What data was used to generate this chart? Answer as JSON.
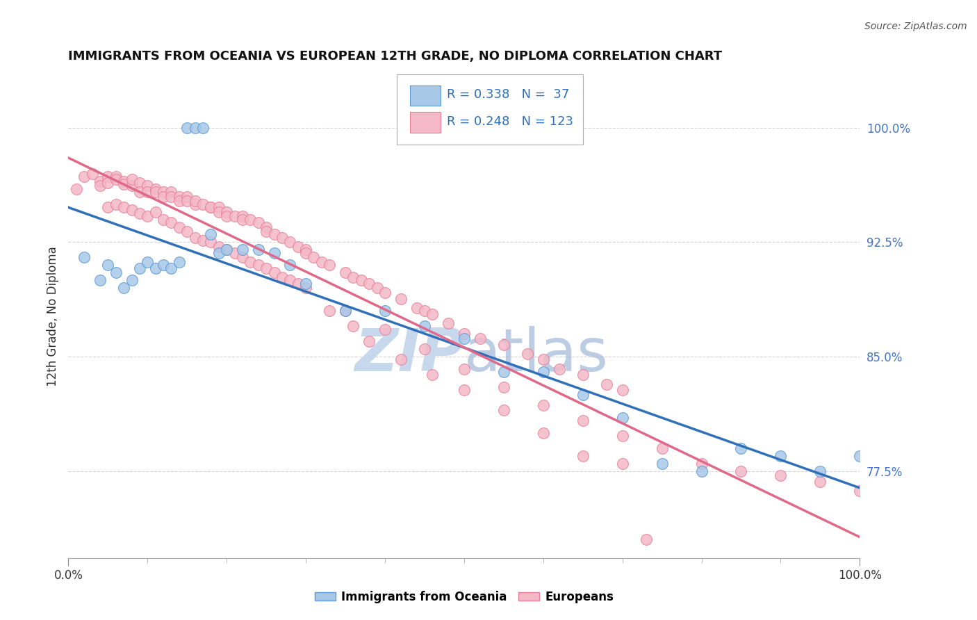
{
  "title": "IMMIGRANTS FROM OCEANIA VS EUROPEAN 12TH GRADE, NO DIPLOMA CORRELATION CHART",
  "source": "Source: ZipAtlas.com",
  "ylabel": "12th Grade, No Diploma",
  "xlim": [
    0.0,
    1.0
  ],
  "ylim": [
    0.718,
    1.035
  ],
  "yticks": [
    0.775,
    0.85,
    0.925,
    1.0
  ],
  "ytick_labels": [
    "77.5%",
    "85.0%",
    "92.5%",
    "100.0%"
  ],
  "xticks": [
    0.0,
    1.0
  ],
  "xtick_labels": [
    "0.0%",
    "100.0%"
  ],
  "legend_r_blue": "R = 0.338",
  "legend_n_blue": "N =  37",
  "legend_r_pink": "R = 0.248",
  "legend_n_pink": "N = 123",
  "blue_face_color": "#a8c8e8",
  "blue_edge_color": "#5b9bd5",
  "pink_face_color": "#f4b8c8",
  "pink_edge_color": "#e88098",
  "blue_line_color": "#3070b8",
  "pink_line_color": "#e06888",
  "watermark_color": "#c8d8ec",
  "background_color": "#ffffff",
  "tick_color": "#4472c4",
  "grid_color": "#d0d0d0",
  "blue_x": [
    0.02,
    0.04,
    0.05,
    0.06,
    0.07,
    0.08,
    0.09,
    0.1,
    0.11,
    0.12,
    0.13,
    0.14,
    0.15,
    0.16,
    0.17,
    0.18,
    0.19,
    0.2,
    0.22,
    0.24,
    0.26,
    0.28,
    0.3,
    0.35,
    0.4,
    0.45,
    0.5,
    0.55,
    0.6,
    0.65,
    0.7,
    0.75,
    0.8,
    0.85,
    0.9,
    0.95,
    1.0
  ],
  "blue_y": [
    0.915,
    0.9,
    0.91,
    0.905,
    0.895,
    0.9,
    0.908,
    0.912,
    0.908,
    0.91,
    0.908,
    0.912,
    1.0,
    1.0,
    1.0,
    0.93,
    0.918,
    0.92,
    0.92,
    0.92,
    0.918,
    0.91,
    0.898,
    0.88,
    0.88,
    0.87,
    0.862,
    0.84,
    0.84,
    0.825,
    0.81,
    0.78,
    0.775,
    0.79,
    0.785,
    0.775,
    0.785
  ],
  "pink_x": [
    0.01,
    0.02,
    0.03,
    0.04,
    0.04,
    0.05,
    0.05,
    0.06,
    0.06,
    0.07,
    0.07,
    0.08,
    0.08,
    0.09,
    0.09,
    0.1,
    0.1,
    0.11,
    0.11,
    0.12,
    0.12,
    0.13,
    0.13,
    0.14,
    0.14,
    0.15,
    0.15,
    0.16,
    0.16,
    0.17,
    0.18,
    0.18,
    0.19,
    0.19,
    0.2,
    0.2,
    0.21,
    0.22,
    0.22,
    0.23,
    0.24,
    0.25,
    0.25,
    0.26,
    0.27,
    0.28,
    0.29,
    0.3,
    0.3,
    0.31,
    0.32,
    0.33,
    0.35,
    0.36,
    0.37,
    0.38,
    0.39,
    0.4,
    0.42,
    0.44,
    0.45,
    0.46,
    0.48,
    0.5,
    0.52,
    0.55,
    0.58,
    0.6,
    0.62,
    0.65,
    0.68,
    0.7,
    0.05,
    0.06,
    0.07,
    0.08,
    0.09,
    0.1,
    0.11,
    0.12,
    0.13,
    0.14,
    0.15,
    0.16,
    0.17,
    0.18,
    0.19,
    0.2,
    0.21,
    0.22,
    0.23,
    0.24,
    0.25,
    0.26,
    0.27,
    0.28,
    0.29,
    0.3,
    0.35,
    0.4,
    0.45,
    0.5,
    0.55,
    0.6,
    0.65,
    0.7,
    0.75,
    0.8,
    0.85,
    0.9,
    0.95,
    1.0,
    0.33,
    0.36,
    0.38,
    0.42,
    0.46,
    0.5,
    0.55,
    0.6,
    0.65,
    0.7,
    0.73
  ],
  "pink_y": [
    0.96,
    0.968,
    0.97,
    0.965,
    0.962,
    0.968,
    0.964,
    0.968,
    0.966,
    0.965,
    0.963,
    0.962,
    0.966,
    0.964,
    0.958,
    0.962,
    0.958,
    0.96,
    0.958,
    0.958,
    0.955,
    0.958,
    0.955,
    0.955,
    0.952,
    0.955,
    0.952,
    0.95,
    0.952,
    0.95,
    0.948,
    0.948,
    0.948,
    0.945,
    0.945,
    0.942,
    0.942,
    0.942,
    0.94,
    0.94,
    0.938,
    0.935,
    0.932,
    0.93,
    0.928,
    0.925,
    0.922,
    0.92,
    0.918,
    0.915,
    0.912,
    0.91,
    0.905,
    0.902,
    0.9,
    0.898,
    0.895,
    0.892,
    0.888,
    0.882,
    0.88,
    0.878,
    0.872,
    0.865,
    0.862,
    0.858,
    0.852,
    0.848,
    0.842,
    0.838,
    0.832,
    0.828,
    0.948,
    0.95,
    0.948,
    0.946,
    0.944,
    0.942,
    0.945,
    0.94,
    0.938,
    0.935,
    0.932,
    0.928,
    0.926,
    0.925,
    0.922,
    0.92,
    0.918,
    0.915,
    0.912,
    0.91,
    0.908,
    0.905,
    0.902,
    0.9,
    0.898,
    0.895,
    0.88,
    0.868,
    0.855,
    0.842,
    0.83,
    0.818,
    0.808,
    0.798,
    0.79,
    0.78,
    0.775,
    0.772,
    0.768,
    0.762,
    0.88,
    0.87,
    0.86,
    0.848,
    0.838,
    0.828,
    0.815,
    0.8,
    0.785,
    0.78,
    0.73
  ]
}
